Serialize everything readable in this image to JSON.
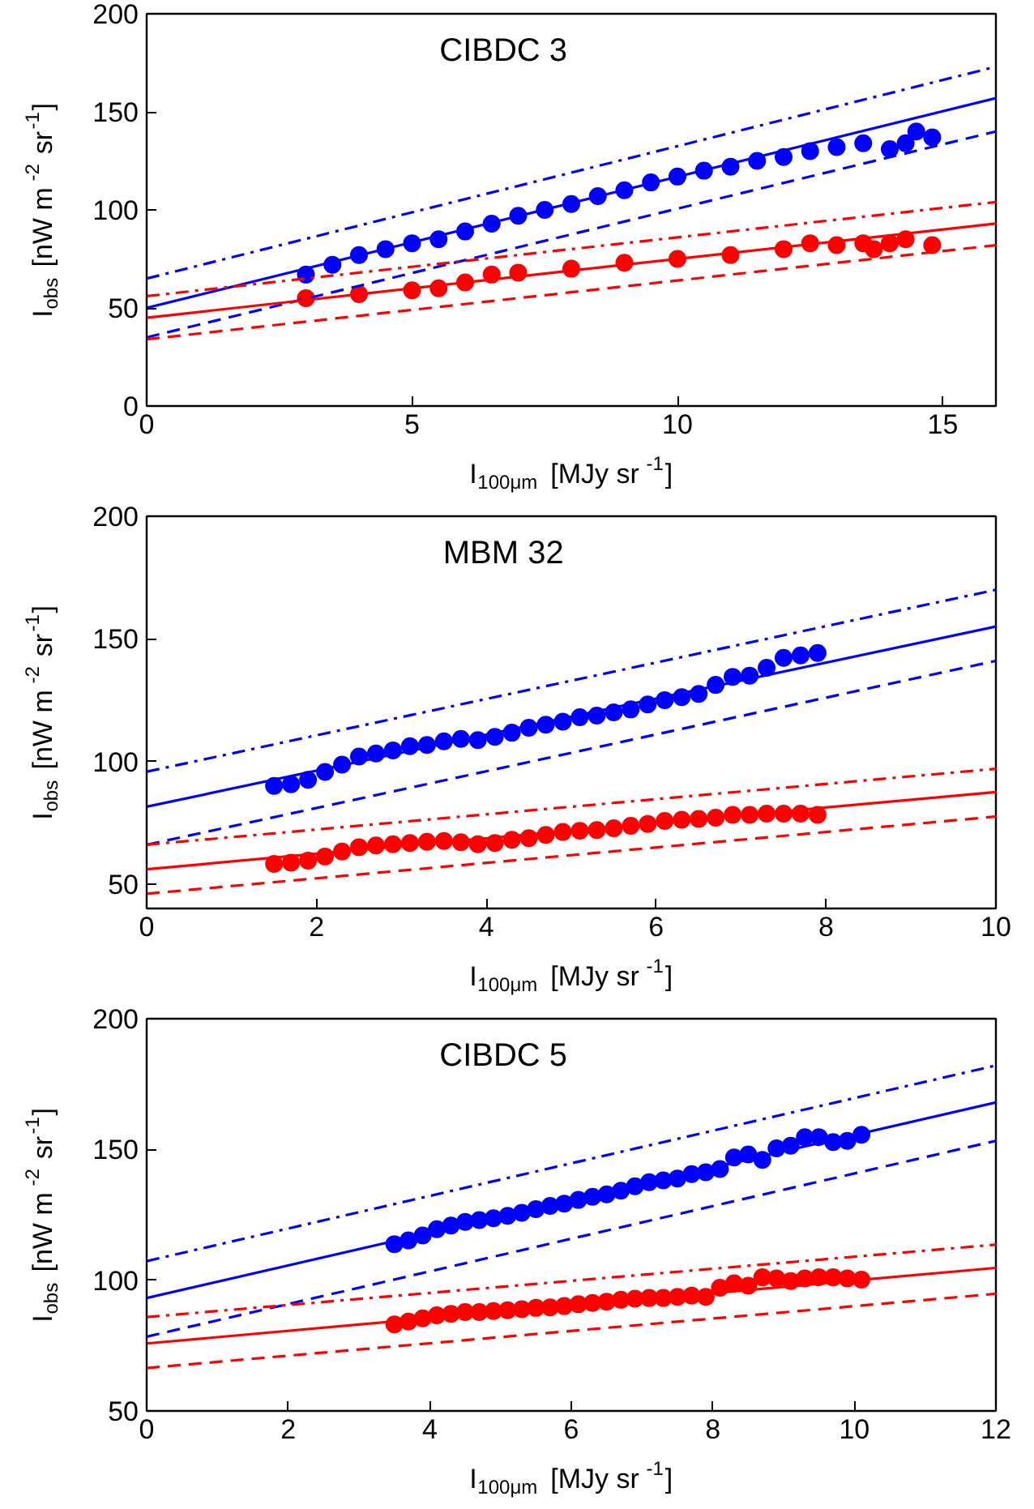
{
  "chart_data": [
    {
      "type": "scatter",
      "title": "CIBDC 3",
      "xlabel": "I$_{100μm}$ [MJy sr$^{-1}$]",
      "ylabel": "I$_{obs}$ [nW m$^{-2}$ sr$^{-1}$]",
      "xlim": [
        0,
        16
      ],
      "xticks": [
        0,
        5,
        10,
        15
      ],
      "ylim": [
        0,
        200
      ],
      "yticks": [
        0,
        50,
        100,
        150,
        200
      ],
      "grid": false,
      "marker": "circle",
      "series": [
        {
          "type": "scatter",
          "color": "#0000ff",
          "x": [
            3,
            3.5,
            4,
            4.5,
            5,
            5.5,
            6,
            6.5,
            7,
            7.5,
            8,
            8.5,
            9,
            9.5,
            10,
            10.5,
            11,
            11.5,
            12,
            12.5,
            13,
            13.5,
            14,
            14.3,
            14.5,
            14.8
          ],
          "values": [
            67,
            72,
            77,
            80,
            83,
            85,
            89,
            93,
            97,
            100,
            103,
            107,
            110,
            114,
            117,
            120,
            122,
            125,
            127,
            130,
            132,
            134,
            131,
            134,
            140,
            137
          ]
        },
        {
          "type": "scatter",
          "color": "#ff0000",
          "x": [
            3,
            4,
            5,
            5.5,
            6,
            6.5,
            7,
            8,
            9,
            10,
            11,
            12,
            12.5,
            13,
            13.5,
            13.7,
            14,
            14.3,
            14.8
          ],
          "values": [
            55,
            57,
            59,
            60,
            63,
            67,
            68,
            70,
            73,
            75,
            77,
            80,
            83,
            82,
            83,
            80,
            83,
            85,
            82
          ]
        },
        {
          "type": "line",
          "line_style": "solid",
          "marker": "none",
          "color": "#0000ff",
          "x": [
            0,
            16
          ],
          "values": [
            50,
            157
          ]
        },
        {
          "type": "line",
          "line_style": "dashdot",
          "marker": "none",
          "color": "#0000ff",
          "x": [
            0,
            16
          ],
          "values": [
            65,
            173
          ]
        },
        {
          "type": "line",
          "line_style": "dashed",
          "marker": "none",
          "color": "#0000ff",
          "x": [
            0,
            16
          ],
          "values": [
            35,
            140
          ]
        },
        {
          "type": "line",
          "line_style": "solid",
          "marker": "none",
          "color": "#ff0000",
          "x": [
            0,
            16
          ],
          "values": [
            45,
            93
          ]
        },
        {
          "type": "line",
          "line_style": "dashdot",
          "marker": "none",
          "color": "#ff0000",
          "x": [
            0,
            16
          ],
          "values": [
            56,
            104
          ]
        },
        {
          "type": "line",
          "line_style": "dashed",
          "marker": "none",
          "color": "#ff0000",
          "x": [
            0,
            16
          ],
          "values": [
            34,
            82
          ]
        }
      ]
    },
    {
      "type": "scatter",
      "title": "MBM 32",
      "xlabel": "I$_{100μm}$ [MJy sr$^{-1}$]",
      "ylabel": "I$_{obs}$ [nW m$^{-2}$ sr$^{-1}$]",
      "xlim": [
        0,
        10
      ],
      "xticks": [
        0,
        2,
        4,
        6,
        8,
        10
      ],
      "ylim": [
        40,
        200
      ],
      "yticks": [
        50,
        100,
        150,
        200
      ],
      "grid": false,
      "marker": "circle",
      "series": [
        {
          "type": "scatter",
          "color": "#0000ff",
          "x": [
            1.5,
            1.7,
            1.9,
            2.1,
            2.3,
            2.5,
            2.7,
            2.9,
            3.1,
            3.3,
            3.5,
            3.7,
            3.9,
            4.1,
            4.3,
            4.5,
            4.7,
            4.9,
            5.1,
            5.3,
            5.5,
            5.7,
            5.9,
            6.1,
            6.3,
            6.5,
            6.7,
            6.9,
            7.1,
            7.3,
            7.5,
            7.7,
            7.9
          ],
          "values": [
            90,
            90.7,
            92.5,
            95.7,
            98.7,
            102,
            103.2,
            104.5,
            106.2,
            106.7,
            108.2,
            109.2,
            108.7,
            110,
            111.7,
            113.7,
            115,
            116.2,
            118,
            118.7,
            120,
            121.2,
            123.2,
            125,
            126.2,
            127.5,
            131.2,
            134.5,
            135,
            138.2,
            142.2,
            143.2,
            144.2
          ]
        },
        {
          "type": "scatter",
          "color": "#ff0000",
          "x": [
            1.5,
            1.7,
            1.9,
            2.1,
            2.3,
            2.5,
            2.7,
            2.9,
            3.1,
            3.3,
            3.5,
            3.7,
            3.9,
            4.1,
            4.3,
            4.5,
            4.7,
            4.9,
            5.1,
            5.3,
            5.5,
            5.7,
            5.9,
            6.1,
            6.3,
            6.5,
            6.7,
            6.9,
            7.1,
            7.3,
            7.5,
            7.7,
            7.9
          ],
          "values": [
            58.2,
            58.7,
            59.5,
            61.2,
            63.2,
            65,
            65.7,
            66.2,
            66.7,
            67.2,
            67.5,
            67,
            66.2,
            66.7,
            68,
            68.7,
            70,
            71.2,
            71.7,
            72,
            72.7,
            73.7,
            74.5,
            75.7,
            76.2,
            76.5,
            77,
            78.2,
            78.2,
            78.7,
            78.7,
            78.7,
            78.2
          ]
        },
        {
          "type": "line",
          "line_style": "solid",
          "marker": "none",
          "color": "#0000ff",
          "x": [
            0,
            10
          ],
          "values": [
            81.5,
            155
          ]
        },
        {
          "type": "line",
          "line_style": "dashdot",
          "marker": "none",
          "color": "#0000ff",
          "x": [
            0,
            10
          ],
          "values": [
            95.8,
            170
          ]
        },
        {
          "type": "line",
          "line_style": "dashed",
          "marker": "none",
          "color": "#0000ff",
          "x": [
            0,
            10
          ],
          "values": [
            66,
            141
          ]
        },
        {
          "type": "line",
          "line_style": "solid",
          "marker": "none",
          "color": "#ff0000",
          "x": [
            0,
            10
          ],
          "values": [
            56,
            87.5
          ]
        },
        {
          "type": "line",
          "line_style": "dashdot",
          "marker": "none",
          "color": "#ff0000",
          "x": [
            0,
            10
          ],
          "values": [
            66,
            97
          ]
        },
        {
          "type": "line",
          "line_style": "dashed",
          "marker": "none",
          "color": "#ff0000",
          "x": [
            0,
            10
          ],
          "values": [
            46,
            77.5
          ]
        }
      ]
    },
    {
      "type": "scatter",
      "title": "CIBDC 5",
      "xlabel": "I$_{100μm}$ [MJy sr$^{-1}$]",
      "ylabel": "I$_{obs}$ [nW m$^{-2}$ sr$^{-1}$]",
      "xlim": [
        0,
        12
      ],
      "xticks": [
        0,
        2,
        4,
        6,
        8,
        10,
        12
      ],
      "ylim": [
        50,
        200
      ],
      "yticks": [
        50,
        100,
        150,
        200
      ],
      "grid": false,
      "marker": "circle",
      "series": [
        {
          "type": "scatter",
          "color": "#0000ff",
          "x": [
            3.5,
            3.7,
            3.9,
            4.1,
            4.3,
            4.5,
            4.7,
            4.9,
            5.1,
            5.3,
            5.5,
            5.7,
            5.9,
            6.1,
            6.3,
            6.5,
            6.7,
            6.9,
            7.1,
            7.3,
            7.5,
            7.7,
            7.9,
            8.1,
            8.3,
            8.5,
            8.7,
            8.9,
            9.1,
            9.3,
            9.5,
            9.7,
            9.9,
            10.1
          ],
          "values": [
            113.8,
            115.2,
            117.1,
            119.5,
            120.9,
            122.3,
            123,
            123.7,
            124.6,
            125.8,
            127.2,
            128.4,
            129.3,
            130.7,
            131.9,
            132.8,
            134.2,
            135.9,
            137.5,
            138.2,
            138.9,
            140.6,
            141.3,
            142.5,
            146.9,
            148.1,
            146,
            150.4,
            151.4,
            154.7,
            154.7,
            152.8,
            153.3,
            155.6
          ]
        },
        {
          "type": "scatter",
          "color": "#ff0000",
          "x": [
            3.5,
            3.7,
            3.9,
            4.1,
            4.3,
            4.5,
            4.7,
            4.9,
            5.1,
            5.3,
            5.5,
            5.7,
            5.9,
            6.1,
            6.3,
            6.5,
            6.7,
            6.9,
            7.1,
            7.3,
            7.5,
            7.7,
            7.9,
            8.1,
            8.3,
            8.5,
            8.7,
            8.9,
            9.1,
            9.3,
            9.5,
            9.7,
            9.9,
            10.1
          ],
          "values": [
            83.1,
            84.2,
            85.4,
            86.6,
            87.1,
            87.8,
            87.8,
            88.2,
            88.5,
            88.9,
            89.4,
            89.6,
            90.1,
            90.8,
            91.3,
            91.8,
            92.5,
            92.9,
            93.2,
            93.2,
            93.6,
            94.1,
            93.6,
            97.1,
            98.8,
            97.9,
            101.1,
            100.7,
            99.7,
            100.7,
            101.1,
            101.1,
            100.7,
            100.2
          ]
        },
        {
          "type": "line",
          "line_style": "solid",
          "marker": "none",
          "color": "#0000ff",
          "x": [
            0,
            12
          ],
          "values": [
            93.2,
            168
          ]
        },
        {
          "type": "line",
          "line_style": "dashdot",
          "marker": "none",
          "color": "#0000ff",
          "x": [
            0,
            12
          ],
          "values": [
            107.3,
            182.1
          ]
        },
        {
          "type": "line",
          "line_style": "dashed",
          "marker": "none",
          "color": "#0000ff",
          "x": [
            0,
            12
          ],
          "values": [
            78.4,
            153.3
          ]
        },
        {
          "type": "line",
          "line_style": "solid",
          "marker": "none",
          "color": "#ff0000",
          "x": [
            0,
            12
          ],
          "values": [
            75.8,
            104.7
          ]
        },
        {
          "type": "line",
          "line_style": "dashdot",
          "marker": "none",
          "color": "#ff0000",
          "x": [
            0,
            12
          ],
          "values": [
            85.9,
            113.6
          ]
        },
        {
          "type": "line",
          "line_style": "dashed",
          "marker": "none",
          "color": "#ff0000",
          "x": [
            0,
            12
          ],
          "values": [
            66.4,
            94.8
          ]
        }
      ]
    }
  ]
}
